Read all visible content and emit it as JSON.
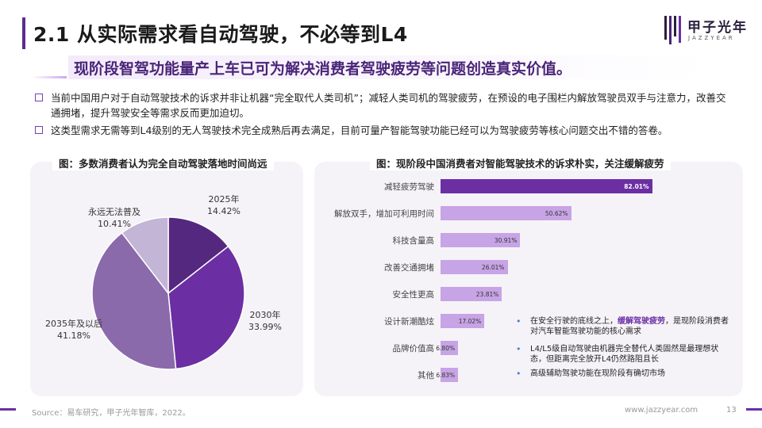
{
  "header": {
    "title": "2.1 从实际需求看自动驾驶，不必等到L4",
    "logo_cn": "甲子光年",
    "logo_en": "JAZZYEAR"
  },
  "subtitle": "现阶段智驾功能量产上车已可为解决消费者驾驶疲劳等问题创造真实价值。",
  "bullets": [
    "当前中国用户对于自动驾驶技术的诉求并非让机器“完全取代人类司机”；减轻人类司机的驾驶疲劳，在预设的电子围栏内解放驾驶员双手与注意力，改善交通拥堵，提升驾驶安全等需求反而更加迫切。",
    "这类型需求无需等到L4级别的无人驾驶技术完全成熟后再去满足，目前可量产智能驾驶功能已经可以为驾驶疲劳等核心问题交出不错的答卷。"
  ],
  "chart_data": [
    {
      "type": "pie",
      "title": "图：多数消费者认为完全自动驾驶落地时间尚远",
      "labels": [
        "2025年",
        "2030年",
        "2035年及以后",
        "永远无法普及"
      ],
      "values": [
        14.42,
        33.99,
        41.18,
        10.41
      ],
      "display_values": [
        "14.42%",
        "33.99%",
        "41.18%",
        "10.41%"
      ],
      "colors": [
        "#55287f",
        "#6b2fa3",
        "#8a6aaa",
        "#c3b5d6"
      ]
    },
    {
      "type": "bar",
      "orientation": "horizontal",
      "title": "图：现阶段中国消费者对智能驾驶技术的诉求朴实，关注缓解疲劳",
      "categories": [
        "减轻疲劳驾驶",
        "解放双手，增加可利用时间",
        "科技含量高",
        "改善交通拥堵",
        "安全性更高",
        "设计新潮酷炫",
        "品牌价值高",
        "其他"
      ],
      "values": [
        82.01,
        50.62,
        30.91,
        26.01,
        23.81,
        17.02,
        6.8,
        6.83
      ],
      "display_values": [
        "82.01%",
        "50.62%",
        "30.91%",
        "26.01%",
        "23.81%",
        "17.02%",
        "6.80%",
        "6.83%"
      ],
      "xlim": [
        0,
        100
      ],
      "colors": {
        "highlight": "#6b2fa3",
        "normal": "#c7a4e5"
      }
    }
  ],
  "notes": [
    {
      "pre": "在安全行驶的底线之上，",
      "em": "缓解驾驶疲劳",
      "post": "，是现阶段消费者对汽车智能驾驶功能的核心需求"
    },
    {
      "pre": "L4/L5级自动驾驶由机器完全替代人类固然是最理想状态，但距离完全放开L4仍然路阻且长",
      "em": "",
      "post": ""
    },
    {
      "pre": "高级辅助驾驶功能在现阶段有确切市场",
      "em": "",
      "post": ""
    }
  ],
  "footer": {
    "source": "Source：易车研究，甲子光年智库，2022。",
    "site": "www.jazzyear.com",
    "page": "13"
  }
}
